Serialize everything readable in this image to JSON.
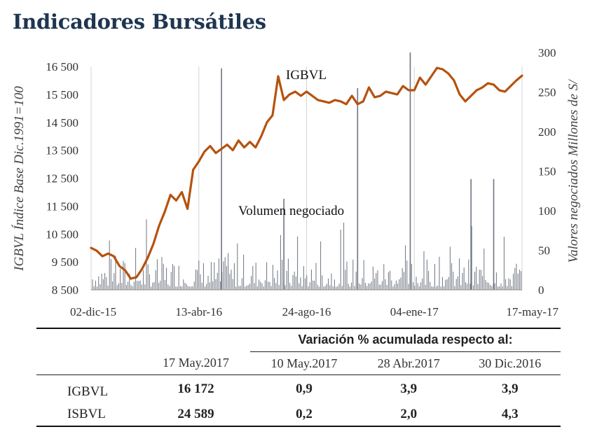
{
  "title": "Indicadores Bursátiles",
  "chart_data": {
    "type": "line+bar",
    "ylabel_left": "IGBVL Índice Base Dic.1991=100",
    "ylabel_right": "Valores negociados Millones de S/",
    "left_ticks": [
      "16 500",
      "15 500",
      "14 500",
      "13 500",
      "12 500",
      "11 500",
      "10 500",
      "9 500",
      "8 500"
    ],
    "left_tick_values": [
      16500,
      15500,
      14500,
      13500,
      12500,
      11500,
      10500,
      9500,
      8500
    ],
    "ylim_left": [
      8500,
      16500
    ],
    "right_ticks": [
      "300",
      "250",
      "200",
      "150",
      "100",
      "50",
      "0"
    ],
    "right_tick_values": [
      300,
      250,
      200,
      150,
      100,
      50,
      0
    ],
    "ylim_right": [
      0,
      300
    ],
    "x_ticks": [
      "02-dic-15",
      "13-abr-16",
      "24-ago-16",
      "04-ene-17",
      "17-may-17"
    ],
    "grid": "vertical",
    "annotations": [
      "IGBVL",
      "Volumen negociado"
    ],
    "series": [
      {
        "name": "IGBVL",
        "color": "#b5520f",
        "dates": [
          "02-dic-15",
          "09-dic-15",
          "16-dic-15",
          "23-dic-15",
          "30-dic-15",
          "06-ene-16",
          "13-ene-16",
          "20-ene-16",
          "27-ene-16",
          "03-feb-16",
          "10-feb-16",
          "17-feb-16",
          "24-feb-16",
          "02-mar-16",
          "09-mar-16",
          "16-mar-16",
          "23-mar-16",
          "30-mar-16",
          "06-abr-16",
          "13-abr-16",
          "20-abr-16",
          "27-abr-16",
          "04-may-16",
          "11-may-16",
          "18-may-16",
          "25-may-16",
          "01-jun-16",
          "08-jun-16",
          "15-jun-16",
          "22-jun-16",
          "29-jun-16",
          "06-jul-16",
          "13-jul-16",
          "20-jul-16",
          "27-jul-16",
          "03-ago-16",
          "10-ago-16",
          "17-ago-16",
          "24-ago-16",
          "31-ago-16",
          "07-sep-16",
          "14-sep-16",
          "21-sep-16",
          "28-sep-16",
          "05-oct-16",
          "12-oct-16",
          "19-oct-16",
          "26-oct-16",
          "02-nov-16",
          "09-nov-16",
          "16-nov-16",
          "23-nov-16",
          "30-nov-16",
          "07-dic-16",
          "14-dic-16",
          "21-dic-16",
          "28-dic-16",
          "04-ene-17",
          "11-ene-17",
          "18-ene-17",
          "25-ene-17",
          "01-feb-17",
          "08-feb-17",
          "15-feb-17",
          "22-feb-17",
          "01-mar-17",
          "08-mar-17",
          "15-mar-17",
          "22-mar-17",
          "29-mar-17",
          "05-abr-17",
          "12-abr-17",
          "19-abr-17",
          "26-abr-17",
          "03-may-17",
          "10-may-17",
          "17-may-17"
        ],
        "values": [
          10000,
          9900,
          9700,
          9800,
          9700,
          9350,
          9200,
          8900,
          8950,
          9250,
          9650,
          10150,
          10800,
          11300,
          11900,
          11700,
          12000,
          11400,
          12800,
          13100,
          13450,
          13650,
          13400,
          13550,
          13700,
          13500,
          13850,
          13600,
          13800,
          13600,
          14000,
          14500,
          14750,
          16150,
          15300,
          15500,
          15600,
          15450,
          15600,
          15450,
          15300,
          15250,
          15200,
          15300,
          15250,
          15150,
          15450,
          15150,
          15250,
          15750,
          15400,
          15450,
          15600,
          15550,
          15500,
          15800,
          15650,
          15650,
          16100,
          15850,
          16150,
          16450,
          16400,
          16250,
          16000,
          15500,
          15250,
          15450,
          15650,
          15750,
          15900,
          15850,
          15650,
          15600,
          15800,
          16000,
          16172
        ]
      },
      {
        "name": "Volumen negociado",
        "color": "#6e7480",
        "peaks": [
          {
            "date": "11-may-16",
            "value": 280
          },
          {
            "date": "27-jul-16",
            "value": 115
          },
          {
            "date": "26-oct-16",
            "value": 255
          },
          {
            "date": "30-dic-16",
            "value": 300
          },
          {
            "date": "15-mar-17",
            "value": 140
          },
          {
            "date": "12-abr-17",
            "value": 140
          }
        ]
      }
    ]
  },
  "table": {
    "span_header": "Variación % acumulada respecto al:",
    "col_headers": [
      "17 May.2017",
      "10 May.2017",
      "28 Abr.2017",
      "30 Dic.2016"
    ],
    "rows": [
      {
        "name": "IGBVL",
        "values": [
          "16 172",
          "0,9",
          "3,9",
          "3,9"
        ]
      },
      {
        "name": "ISBVL",
        "values": [
          "24 589",
          "0,2",
          "2,0",
          "4,3"
        ]
      }
    ]
  }
}
